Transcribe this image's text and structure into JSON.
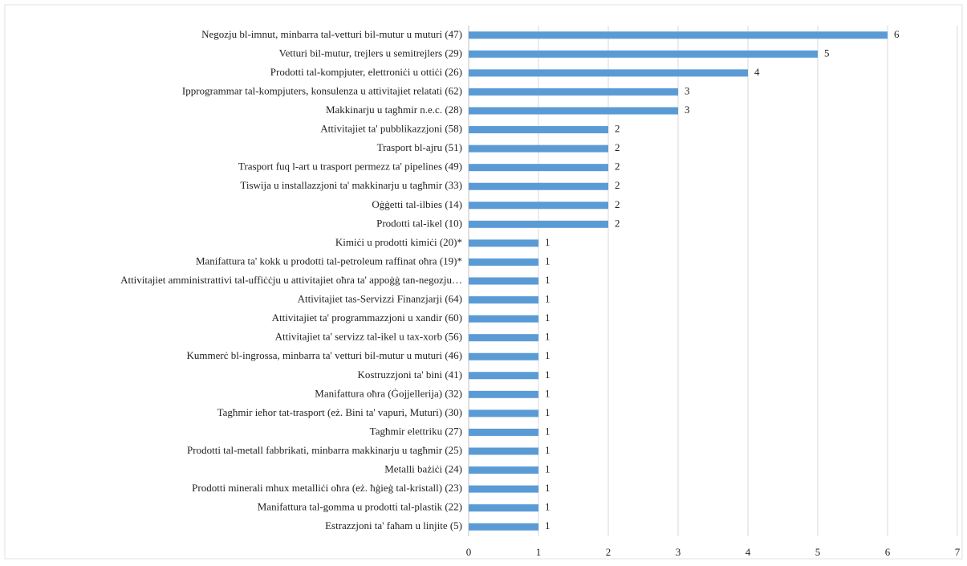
{
  "chart_data": {
    "type": "barh",
    "categories": [
      "Negozju bl-imnut, minbarra tal-vetturi bil-mutur u muturi (47)",
      "Vetturi bil-mutur, trejlers u semitrejlers (29)",
      "Prodotti tal-kompjuter, elettroniċi u ottiċi (26)",
      "Ipprogrammar tal-kompjuters, konsulenza u attivitajiet relatati (62)",
      "Makkinarju u tagħmir n.e.c. (28)",
      "Attivitajiet ta' pubblikazzjoni (58)",
      "Trasport bl-ajru (51)",
      "Trasport fuq l-art u trasport permezz ta' pipelines (49)",
      "Tiswija u installazzjoni ta' makkinarju u tagħmir (33)",
      "Oġġetti tal-ilbies (14)",
      "Prodotti tal-ikel (10)",
      "Kimiċi u prodotti kimiċi (20)*",
      "Manifattura ta' kokk u prodotti tal-petroleum raffinat oħra (19)*",
      "Attivitajiet amministrattivi tal-uffiċċju u attivitajiet oħra ta' appoġġ tan-negozju…",
      "Attivitajiet tas-Servizzi Finanzjarji (64)",
      "Attivitajiet ta' programmazzjoni u xandir (60)",
      "Attivitajiet ta' servizz tal-ikel u tax-xorb (56)",
      "Kummerċ bl-ingrossa, minbarra ta' vetturi bil-mutur u muturi (46)",
      "Kostruzzjoni ta' bini (41)",
      "Manifattura oħra (Ġojjellerija) (32)",
      "Tagħmir ieħor tat-trasport (eż. Bini ta' vapuri, Muturi) (30)",
      "Tagħmir elettriku (27)",
      "Prodotti tal-metall fabbrikati, minbarra makkinarju u tagħmir (25)",
      "Metalli bażiċi (24)",
      "Prodotti minerali mhux metalliċi oħra (eż. ħġieġ tal-kristall) (23)",
      "Manifattura tal-gomma u prodotti tal-plastik (22)",
      "Estrazzjoni ta' faħam u linjite (5)"
    ],
    "values": [
      6,
      5,
      4,
      3,
      3,
      2,
      2,
      2,
      2,
      2,
      2,
      1,
      1,
      1,
      1,
      1,
      1,
      1,
      1,
      1,
      1,
      1,
      1,
      1,
      1,
      1,
      1
    ],
    "color": "#5b9bd5",
    "xlim": [
      0,
      7
    ],
    "xticks": [
      0,
      1,
      2,
      3,
      4,
      5,
      6,
      7
    ],
    "grid": true
  }
}
